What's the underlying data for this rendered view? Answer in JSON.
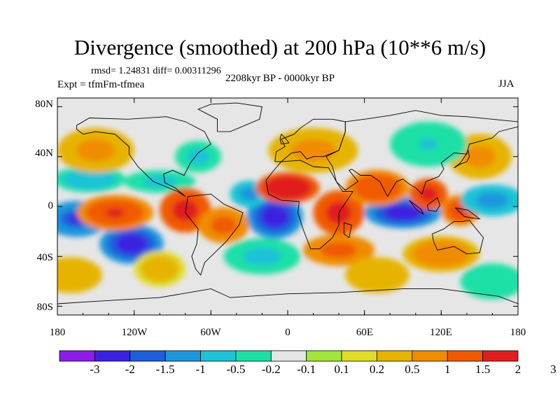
{
  "title": "Divergence (smoothed) at 200 hPa (10**6 m/s)",
  "stats": "rmsd= 1.24831  diff= 0.00311296",
  "experiment": "Expt = tfmFm-tfmea",
  "period": "2208kyr BP - 0000kyr BP",
  "season": "JJA",
  "axes": {
    "y_ticks": [
      "80N",
      "40N",
      "0",
      "40S",
      "80S"
    ],
    "x_ticks": [
      "180",
      "120W",
      "60W",
      "0",
      "60E",
      "120E",
      "180"
    ]
  },
  "colorbar": {
    "colors": [
      "#8a1ee8",
      "#3b22e0",
      "#1f5fdc",
      "#1e96dc",
      "#1ec2d6",
      "#1ee0a6",
      "#e6e6e6",
      "#a2e63c",
      "#e0dc28",
      "#e6b400",
      "#f08c00",
      "#f05a00",
      "#e01e1e"
    ],
    "labels": [
      "-3",
      "-2",
      "-1.5",
      "-1",
      "-0.5",
      "-0.2",
      "-0.1",
      "0.1",
      "0.2",
      "0.5",
      "1",
      "1.5",
      "2",
      "3"
    ]
  },
  "field": {
    "neutral_color": "#e6e6e6",
    "blobs": [
      {
        "lon": -155,
        "lat": 22,
        "rx": 28,
        "ry": 6,
        "level": -0.8
      },
      {
        "lon": -100,
        "lat": 20,
        "rx": 28,
        "ry": 5,
        "level": -0.6
      },
      {
        "lon": -165,
        "lat": -10,
        "rx": 25,
        "ry": 8,
        "level": -2.2
      },
      {
        "lon": -122,
        "lat": -30,
        "rx": 25,
        "ry": 9,
        "level": -2.6
      },
      {
        "lon": -135,
        "lat": -5,
        "rx": 30,
        "ry": 8,
        "level": 1.6
      },
      {
        "lon": -80,
        "lat": -3,
        "rx": 20,
        "ry": 10,
        "level": 2.2
      },
      {
        "lon": -50,
        "lat": -15,
        "rx": 20,
        "ry": 8,
        "level": 1.2
      },
      {
        "lon": -10,
        "lat": -8,
        "rx": 22,
        "ry": 10,
        "level": -2.8
      },
      {
        "lon": -30,
        "lat": 10,
        "rx": 15,
        "ry": 6,
        "level": -1.2
      },
      {
        "lon": 0,
        "lat": 15,
        "rx": 25,
        "ry": 7,
        "level": 2.3
      },
      {
        "lon": 40,
        "lat": -5,
        "rx": 20,
        "ry": 10,
        "level": 2.0
      },
      {
        "lon": 90,
        "lat": -5,
        "rx": 30,
        "ry": 7,
        "level": -2.7
      },
      {
        "lon": 70,
        "lat": 15,
        "rx": 25,
        "ry": 8,
        "level": 1.5
      },
      {
        "lon": 110,
        "lat": 10,
        "rx": 15,
        "ry": 7,
        "level": 2.2
      },
      {
        "lon": 135,
        "lat": -3,
        "rx": 15,
        "ry": 7,
        "level": 1.7
      },
      {
        "lon": 160,
        "lat": 5,
        "rx": 25,
        "ry": 7,
        "level": -1.3
      },
      {
        "lon": -20,
        "lat": -40,
        "rx": 30,
        "ry": 8,
        "level": -0.7
      },
      {
        "lon": 40,
        "lat": -35,
        "rx": 28,
        "ry": 7,
        "level": 1.2
      },
      {
        "lon": 120,
        "lat": -38,
        "rx": 30,
        "ry": 8,
        "level": 0.9
      },
      {
        "lon": -150,
        "lat": 45,
        "rx": 30,
        "ry": 10,
        "level": 0.6
      },
      {
        "lon": 20,
        "lat": 45,
        "rx": 35,
        "ry": 10,
        "level": 0.6
      },
      {
        "lon": 150,
        "lat": 40,
        "rx": 25,
        "ry": 10,
        "level": 0.7
      },
      {
        "lon": -70,
        "lat": 40,
        "rx": 18,
        "ry": 7,
        "level": -0.6
      },
      {
        "lon": 110,
        "lat": 50,
        "rx": 30,
        "ry": 10,
        "level": -0.5
      },
      {
        "lon": -170,
        "lat": -55,
        "rx": 25,
        "ry": 8,
        "level": 0.4
      },
      {
        "lon": 160,
        "lat": -60,
        "rx": 25,
        "ry": 8,
        "level": -0.4
      },
      {
        "lon": 70,
        "lat": -55,
        "rx": 25,
        "ry": 8,
        "level": 0.5
      },
      {
        "lon": -100,
        "lat": -50,
        "rx": 20,
        "ry": 8,
        "level": 0.3
      }
    ]
  },
  "coastlines": [
    {
      "name": "north-america",
      "points": [
        [
          -165,
          65
        ],
        [
          -155,
          71
        ],
        [
          -125,
          70
        ],
        [
          -95,
          72
        ],
        [
          -80,
          68
        ],
        [
          -65,
          60
        ],
        [
          -60,
          50
        ],
        [
          -70,
          43
        ],
        [
          -76,
          35
        ],
        [
          -81,
          25
        ],
        [
          -90,
          29
        ],
        [
          -97,
          26
        ],
        [
          -96,
          19
        ],
        [
          -88,
          15
        ],
        [
          -80,
          8
        ],
        [
          -86,
          12
        ],
        [
          -105,
          20
        ],
        [
          -117,
          32
        ],
        [
          -124,
          42
        ],
        [
          -124,
          48
        ],
        [
          -135,
          58
        ],
        [
          -150,
          60
        ],
        [
          -160,
          58
        ],
        [
          -165,
          62
        ],
        [
          -165,
          65
        ]
      ]
    },
    {
      "name": "greenland",
      "points": [
        [
          -55,
          60
        ],
        [
          -45,
          60
        ],
        [
          -22,
          70
        ],
        [
          -20,
          80
        ],
        [
          -40,
          83
        ],
        [
          -60,
          82
        ],
        [
          -70,
          78
        ],
        [
          -55,
          70
        ],
        [
          -55,
          60
        ]
      ]
    },
    {
      "name": "south-america",
      "points": [
        [
          -78,
          8
        ],
        [
          -60,
          10
        ],
        [
          -50,
          2
        ],
        [
          -35,
          -5
        ],
        [
          -38,
          -15
        ],
        [
          -48,
          -28
        ],
        [
          -58,
          -38
        ],
        [
          -65,
          -45
        ],
        [
          -68,
          -55
        ],
        [
          -72,
          -50
        ],
        [
          -75,
          -40
        ],
        [
          -71,
          -30
        ],
        [
          -70,
          -18
        ],
        [
          -80,
          -5
        ],
        [
          -78,
          8
        ]
      ]
    },
    {
      "name": "europe",
      "points": [
        [
          -10,
          36
        ],
        [
          -9,
          44
        ],
        [
          -2,
          48
        ],
        [
          -5,
          54
        ],
        [
          5,
          58
        ],
        [
          10,
          63
        ],
        [
          20,
          70
        ],
        [
          35,
          70
        ],
        [
          45,
          68
        ],
        [
          45,
          60
        ],
        [
          40,
          45
        ],
        [
          28,
          40
        ],
        [
          20,
          40
        ],
        [
          15,
          38
        ],
        [
          10,
          44
        ],
        [
          3,
          43
        ],
        [
          -5,
          36
        ],
        [
          -10,
          36
        ]
      ]
    },
    {
      "name": "africa",
      "points": [
        [
          -17,
          21
        ],
        [
          -10,
          30
        ],
        [
          -5,
          36
        ],
        [
          10,
          37
        ],
        [
          20,
          32
        ],
        [
          32,
          31
        ],
        [
          38,
          20
        ],
        [
          43,
          12
        ],
        [
          51,
          12
        ],
        [
          40,
          -5
        ],
        [
          40,
          -15
        ],
        [
          35,
          -25
        ],
        [
          25,
          -34
        ],
        [
          18,
          -34
        ],
        [
          12,
          -18
        ],
        [
          8,
          -5
        ],
        [
          9,
          4
        ],
        [
          -5,
          5
        ],
        [
          -15,
          10
        ],
        [
          -17,
          21
        ]
      ]
    },
    {
      "name": "asia",
      "points": [
        [
          45,
          68
        ],
        [
          60,
          70
        ],
        [
          80,
          73
        ],
        [
          100,
          77
        ],
        [
          120,
          73
        ],
        [
          140,
          72
        ],
        [
          160,
          70
        ],
        [
          180,
          68
        ],
        [
          180,
          64
        ],
        [
          165,
          60
        ],
        [
          160,
          55
        ],
        [
          142,
          50
        ],
        [
          140,
          42
        ],
        [
          130,
          43
        ],
        [
          120,
          35
        ],
        [
          122,
          30
        ],
        [
          118,
          24
        ],
        [
          108,
          20
        ],
        [
          105,
          10
        ],
        [
          100,
          15
        ],
        [
          95,
          18
        ],
        [
          90,
          22
        ],
        [
          85,
          20
        ],
        [
          78,
          8
        ],
        [
          72,
          20
        ],
        [
          65,
          25
        ],
        [
          57,
          25
        ],
        [
          50,
          30
        ],
        [
          48,
          29
        ],
        [
          55,
          20
        ],
        [
          45,
          13
        ],
        [
          38,
          20
        ],
        [
          35,
          32
        ],
        [
          30,
          40
        ],
        [
          40,
          45
        ],
        [
          45,
          60
        ],
        [
          45,
          68
        ]
      ]
    },
    {
      "name": "australia",
      "points": [
        [
          113,
          -22
        ],
        [
          122,
          -18
        ],
        [
          130,
          -12
        ],
        [
          137,
          -12
        ],
        [
          142,
          -11
        ],
        [
          145,
          -15
        ],
        [
          153,
          -25
        ],
        [
          150,
          -37
        ],
        [
          140,
          -38
        ],
        [
          130,
          -32
        ],
        [
          117,
          -35
        ],
        [
          114,
          -28
        ],
        [
          113,
          -22
        ]
      ]
    },
    {
      "name": "antarctica",
      "points": [
        [
          -180,
          -78
        ],
        [
          -150,
          -76
        ],
        [
          -100,
          -73
        ],
        [
          -60,
          -66
        ],
        [
          -45,
          -73
        ],
        [
          0,
          -70
        ],
        [
          40,
          -69
        ],
        [
          90,
          -66
        ],
        [
          120,
          -66
        ],
        [
          165,
          -72
        ],
        [
          180,
          -78
        ]
      ]
    },
    {
      "name": "borneo",
      "points": [
        [
          109,
          1
        ],
        [
          117,
          7
        ],
        [
          119,
          1
        ],
        [
          116,
          -4
        ],
        [
          110,
          -3
        ],
        [
          109,
          1
        ]
      ]
    },
    {
      "name": "sumatra",
      "points": [
        [
          95,
          5
        ],
        [
          104,
          -2
        ],
        [
          106,
          -6
        ],
        [
          101,
          -3
        ],
        [
          95,
          5
        ]
      ]
    },
    {
      "name": "new-guinea",
      "points": [
        [
          131,
          -1
        ],
        [
          141,
          -3
        ],
        [
          150,
          -10
        ],
        [
          143,
          -9
        ],
        [
          138,
          -8
        ],
        [
          131,
          -1
        ]
      ]
    },
    {
      "name": "japan",
      "points": [
        [
          130,
          31
        ],
        [
          135,
          34
        ],
        [
          140,
          36
        ],
        [
          142,
          40
        ],
        [
          141,
          45
        ],
        [
          139,
          41
        ],
        [
          135,
          35
        ],
        [
          130,
          31
        ]
      ]
    },
    {
      "name": "madagascar",
      "points": [
        [
          44,
          -13
        ],
        [
          50,
          -15
        ],
        [
          48,
          -25
        ],
        [
          44,
          -22
        ],
        [
          44,
          -13
        ]
      ]
    },
    {
      "name": "uk",
      "points": [
        [
          -5,
          50
        ],
        [
          1,
          51
        ],
        [
          -2,
          55
        ],
        [
          -5,
          58
        ],
        [
          -6,
          54
        ],
        [
          -5,
          50
        ]
      ]
    }
  ]
}
